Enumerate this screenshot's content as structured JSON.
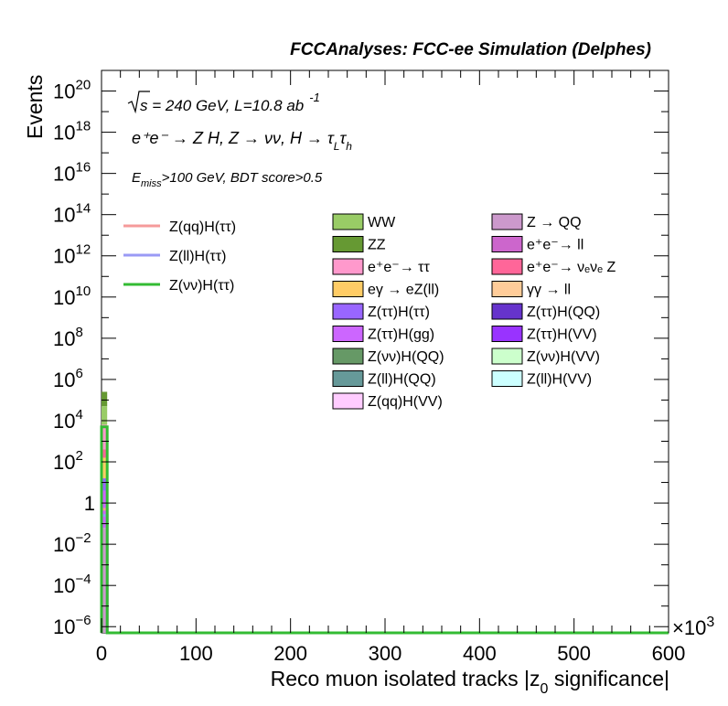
{
  "chart_data": {
    "type": "bar",
    "title": "FCCAnalyses: FCC-ee Simulation (Delphes)",
    "xlabel": "Reco muon isolated tracks |z",
    "xlabel_sub": "0",
    "xlabel_tail": " significance|",
    "ylabel": "Events",
    "x_multiplier": "×10",
    "x_multiplier_exp": "3",
    "xlim": [
      0,
      600
    ],
    "ylim_log10": [
      -6.3,
      21
    ],
    "yscale": "log",
    "x_ticks": [
      0,
      100,
      200,
      300,
      400,
      500,
      600
    ],
    "x_tick_labels": [
      "0",
      "100",
      "200",
      "300",
      "400",
      "500",
      "600"
    ],
    "y_ticks": [
      {
        "exp": 20,
        "label": "10",
        "sup": "20"
      },
      {
        "exp": 18,
        "label": "10",
        "sup": "18"
      },
      {
        "exp": 16,
        "label": "10",
        "sup": "16"
      },
      {
        "exp": 14,
        "label": "10",
        "sup": "14"
      },
      {
        "exp": 12,
        "label": "10",
        "sup": "12"
      },
      {
        "exp": 10,
        "label": "10",
        "sup": "10"
      },
      {
        "exp": 8,
        "label": "10",
        "sup": "8"
      },
      {
        "exp": 6,
        "label": "10",
        "sup": "6"
      },
      {
        "exp": 4,
        "label": "10",
        "sup": "4"
      },
      {
        "exp": 2,
        "label": "10",
        "sup": "2"
      },
      {
        "exp": 0,
        "label": "1",
        "sup": ""
      },
      {
        "exp": -2,
        "label": "10",
        "sup": "−2"
      },
      {
        "exp": -4,
        "label": "10",
        "sup": "−4"
      },
      {
        "exp": -6,
        "label": "10",
        "sup": "−6"
      }
    ],
    "annotations": {
      "line1_pre": "s",
      "line1_main": " = 240 GeV, L=10.8 ab",
      "line1_sup": "-1",
      "line2": "e⁺e⁻ → Z H, Z → νν, H → τ",
      "line2_sub1": "L",
      "line2_tau": "τ",
      "line2_sub2": "h",
      "line3_E": "E",
      "line3_sub": "miss",
      "line3_rest": ">100 GeV, BDT score>0.5"
    },
    "signals": [
      {
        "name": "Z(qq)H(ττ)",
        "color": "#f59a9a",
        "y_log10": -0.3
      },
      {
        "name": "Z(ll)H(ττ)",
        "color": "#9a9af5",
        "y_log10": -0.6
      },
      {
        "name": "Z(νν)H(ττ)",
        "color": "#33bb33",
        "y_log10": 3.7
      }
    ],
    "backgrounds": [
      {
        "name": "WW",
        "color": "#99cc66"
      },
      {
        "name": "Z → QQ",
        "color": "#cc99cc"
      },
      {
        "name": "ZZ",
        "color": "#669933"
      },
      {
        "name": "e⁺e⁻→ ll",
        "color": "#cc66cc"
      },
      {
        "name": "e⁺e⁻→ ττ",
        "color": "#ff99cc"
      },
      {
        "name": "e⁺e⁻→ νₑνₑ Z",
        "color": "#ff6699"
      },
      {
        "name": "eγ → eZ(ll)",
        "color": "#ffcc66"
      },
      {
        "name": "γγ → ll",
        "color": "#ffcc99"
      },
      {
        "name": "Z(ττ)H(ττ)",
        "color": "#9966ff"
      },
      {
        "name": "Z(ττ)H(QQ)",
        "color": "#6633cc"
      },
      {
        "name": "Z(ττ)H(gg)",
        "color": "#cc66ff"
      },
      {
        "name": "Z(ττ)H(VV)",
        "color": "#9933ff"
      },
      {
        "name": "Z(νν)H(QQ)",
        "color": "#669966"
      },
      {
        "name": "Z(νν)H(VV)",
        "color": "#ccffcc"
      },
      {
        "name": "Z(ll)H(QQ)",
        "color": "#669999"
      },
      {
        "name": "Z(ll)H(VV)",
        "color": "#ccffff"
      },
      {
        "name": "Z(qq)H(VV)",
        "color": "#ffccff"
      }
    ],
    "stack_first_bin": [
      {
        "color": "#669933",
        "low": 4.7,
        "high": 5.4
      },
      {
        "color": "#99cc66",
        "low": 3.8,
        "high": 4.7
      },
      {
        "color": "#ff99cc",
        "low": 2.6,
        "high": 3.8
      },
      {
        "color": "#ff6699",
        "low": 2.2,
        "high": 2.6
      },
      {
        "color": "#ffcc66",
        "low": 1.2,
        "high": 2.2
      },
      {
        "color": "#9966ff",
        "low": 0.6,
        "high": 1.2
      },
      {
        "color": "#cc66ff",
        "low": -1.2,
        "high": 0.6
      },
      {
        "color": "#cc99cc",
        "low": -6.3,
        "high": -1.2
      }
    ],
    "first_bin_x": [
      0,
      6
    ]
  }
}
